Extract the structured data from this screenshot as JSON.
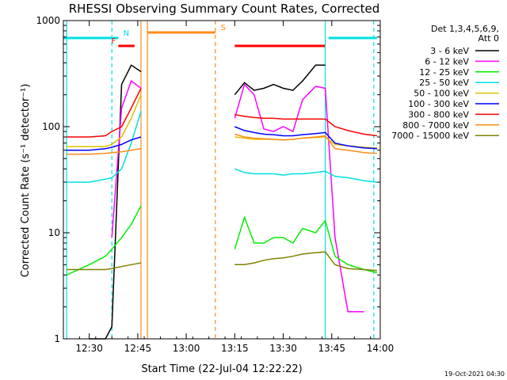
{
  "chart_data": {
    "type": "line",
    "title": "RHESSI Observing Summary Count Rates, Corrected",
    "xlabel": "Start Time (22-Jul-04 12:22:22)",
    "ylabel": "Corrected Count Rate (s⁻¹ detector⁻¹)",
    "y_scale": "log",
    "ylim": [
      1,
      1000
    ],
    "xlim": [
      "12:22",
      "14:00"
    ],
    "x_ticks": [
      "12:30",
      "12:45",
      "13:00",
      "13:15",
      "13:30",
      "13:45",
      "14:00"
    ],
    "y_ticks": [
      "1",
      "10",
      "100",
      "1000"
    ],
    "legend": {
      "placement": "top-right",
      "header": [
        "Det 1,3,4,5,6,9,",
        "Att 0"
      ]
    },
    "footer_stamp": "19-Oct-2021 04:30",
    "gaps": [
      [
        "12:48",
        "13:12"
      ]
    ],
    "markers": [
      {
        "label": "N",
        "color": "#00e0e0",
        "start": "12:22",
        "end": "12:39"
      },
      {
        "label": "S",
        "color": "#ff8c1a",
        "start": "12:48",
        "end": "13:09"
      },
      {
        "label": "F",
        "color": "#ff0000",
        "start": "12:39",
        "end": "12:44"
      },
      {
        "label": "",
        "color": "#ff0000",
        "start": "13:15",
        "end": "13:43"
      },
      {
        "label": "",
        "color": "#00e0e0",
        "start": "13:44",
        "end": "13:59"
      }
    ],
    "vertical_lines": [
      {
        "time": "12:23",
        "color": "#00e0e0",
        "style": "solid"
      },
      {
        "time": "12:37",
        "color": "#00e0e0",
        "style": "dashed"
      },
      {
        "time": "12:46",
        "color": "#ff8c1a",
        "style": "solid"
      },
      {
        "time": "12:48",
        "color": "#ff8c1a",
        "style": "solid"
      },
      {
        "time": "13:09",
        "color": "#ff8c1a",
        "style": "dashed"
      },
      {
        "time": "13:43",
        "color": "#00e0e0",
        "style": "solid"
      },
      {
        "time": "13:58",
        "color": "#00e0e0",
        "style": "dashed"
      }
    ],
    "x": [
      "12:23",
      "12:30",
      "12:35",
      "12:37",
      "12:40",
      "12:43",
      "12:46",
      "13:12",
      "13:15",
      "13:18",
      "13:21",
      "13:24",
      "13:27",
      "13:30",
      "13:33",
      "13:36",
      "13:40",
      "13:43",
      "13:46",
      "13:50",
      "13:55",
      "13:59"
    ],
    "series": [
      {
        "name": "3 - 6 keV",
        "color": "#000000",
        "values": [
          null,
          1,
          1,
          1.3,
          250,
          380,
          330,
          null,
          200,
          260,
          220,
          230,
          250,
          230,
          220,
          270,
          380,
          380,
          null,
          null,
          null,
          null
        ]
      },
      {
        "name": "6 - 12 keV",
        "color": "#ff00ff",
        "values": [
          null,
          null,
          null,
          9,
          150,
          270,
          230,
          null,
          120,
          250,
          200,
          95,
          90,
          100,
          90,
          180,
          240,
          230,
          9,
          1.8,
          1.8,
          null
        ]
      },
      {
        "name": "12 - 25 keV",
        "color": "#00ee00",
        "values": [
          4,
          5,
          6,
          7,
          9,
          12,
          18,
          null,
          7,
          14,
          8,
          8,
          9,
          9,
          8,
          11,
          10,
          13,
          6,
          5,
          4.5,
          4.2
        ]
      },
      {
        "name": "25 - 50 keV",
        "color": "#00e0e0",
        "values": [
          30,
          30,
          32,
          33,
          40,
          70,
          140,
          null,
          40,
          37,
          36,
          36,
          36,
          35,
          36,
          36,
          37,
          38,
          34,
          33,
          31,
          30
        ]
      },
      {
        "name": "50 - 100 keV",
        "color": "#e0c000",
        "values": [
          65,
          65,
          65,
          68,
          80,
          120,
          200,
          null,
          80,
          78,
          76,
          76,
          76,
          75,
          76,
          78,
          79,
          80,
          68,
          66,
          64,
          63
        ]
      },
      {
        "name": "100 - 300 keV",
        "color": "#0000ff",
        "values": [
          60,
          60,
          62,
          64,
          68,
          75,
          80,
          null,
          100,
          92,
          88,
          85,
          84,
          82,
          82,
          84,
          86,
          88,
          70,
          66,
          63,
          62
        ]
      },
      {
        "name": "300 - 800 keV",
        "color": "#ff0000",
        "values": [
          80,
          80,
          82,
          90,
          100,
          150,
          230,
          null,
          130,
          125,
          122,
          120,
          120,
          118,
          118,
          118,
          118,
          118,
          100,
          92,
          85,
          82
        ]
      },
      {
        "name": "800 - 7000 keV",
        "color": "#ff8c1a",
        "values": [
          55,
          55,
          56,
          57,
          58,
          60,
          62,
          null,
          85,
          80,
          78,
          77,
          76,
          75,
          76,
          78,
          80,
          82,
          62,
          60,
          57,
          56
        ]
      },
      {
        "name": "7000 - 15000 keV",
        "color": "#808000",
        "values": [
          4.5,
          4.5,
          4.5,
          4.6,
          4.8,
          5,
          5.2,
          null,
          5,
          5,
          5.2,
          5.5,
          5.7,
          5.8,
          6,
          6.3,
          6.5,
          6.6,
          5,
          4.6,
          4.5,
          4.4
        ]
      }
    ]
  }
}
